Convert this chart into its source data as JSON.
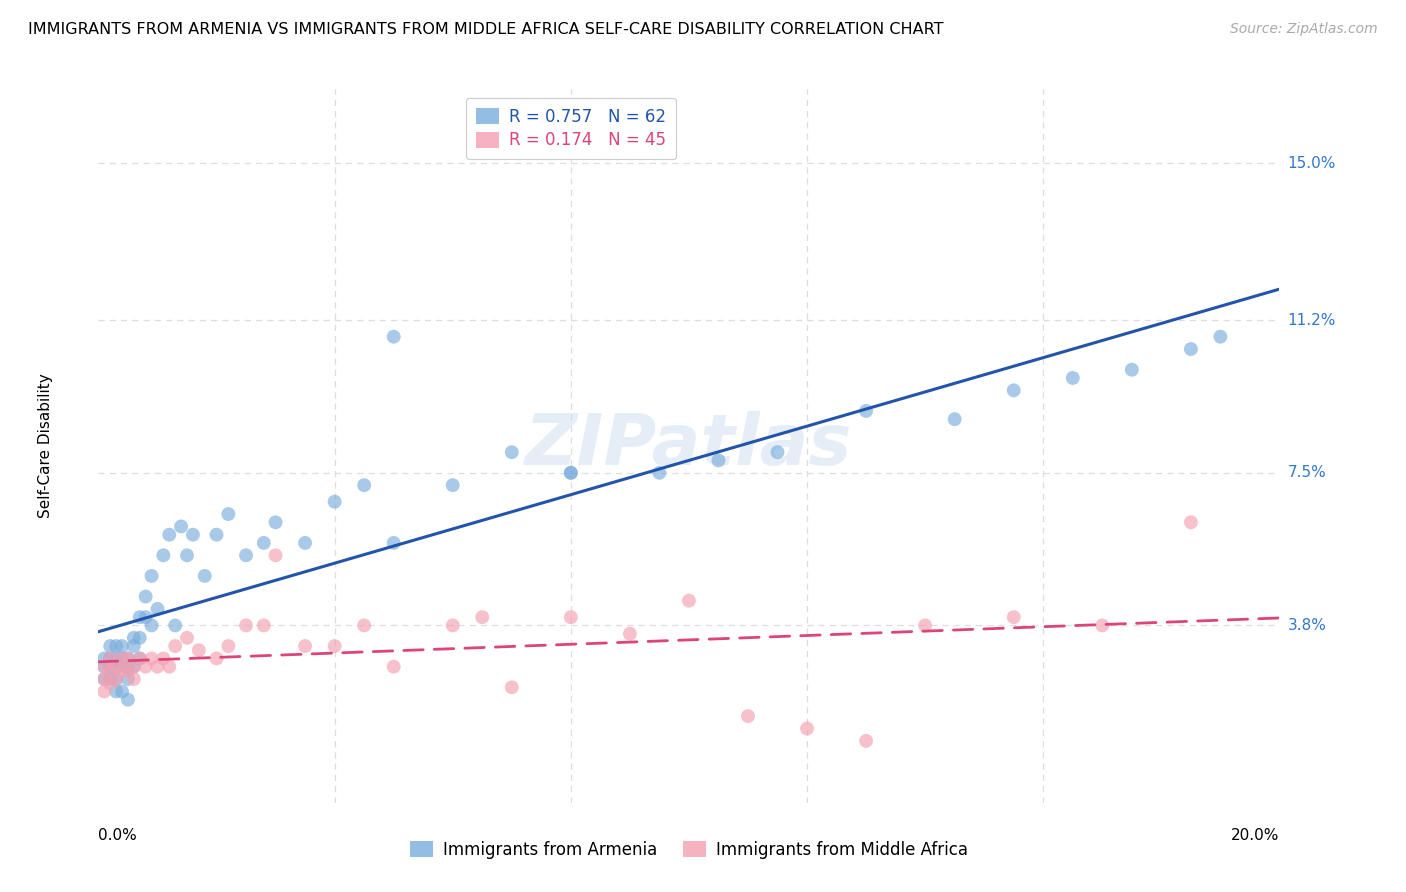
{
  "title": "IMMIGRANTS FROM ARMENIA VS IMMIGRANTS FROM MIDDLE AFRICA SELF-CARE DISABILITY CORRELATION CHART",
  "source": "Source: ZipAtlas.com",
  "ylabel": "Self-Care Disability",
  "ytick_labels": [
    "15.0%",
    "11.2%",
    "7.5%",
    "3.8%"
  ],
  "ytick_values": [
    0.15,
    0.112,
    0.075,
    0.038
  ],
  "xlim": [
    0.0,
    0.2
  ],
  "ylim": [
    -0.005,
    0.168
  ],
  "legend_entries": [
    {
      "label": "R = 0.757   N = 62",
      "color": "#7aaddc"
    },
    {
      "label": "R = 0.174   N = 45",
      "color": "#f4a0b0"
    }
  ],
  "legend_bottom": [
    {
      "label": "Immigrants from Armenia",
      "color": "#7aaddc"
    },
    {
      "label": "Immigrants from Middle Africa",
      "color": "#f4a0b0"
    }
  ],
  "armenia_color": "#7aaddc",
  "middle_africa_color": "#f4a0b0",
  "trendline_armenia_color": "#2255aa",
  "trendline_africa_color": "#dd4477",
  "watermark": "ZIPatlas",
  "armenia_x": [
    0.001,
    0.001,
    0.001,
    0.002,
    0.002,
    0.002,
    0.002,
    0.003,
    0.003,
    0.003,
    0.003,
    0.003,
    0.004,
    0.004,
    0.004,
    0.004,
    0.005,
    0.005,
    0.005,
    0.005,
    0.006,
    0.006,
    0.006,
    0.007,
    0.007,
    0.007,
    0.008,
    0.008,
    0.009,
    0.009,
    0.01,
    0.011,
    0.012,
    0.013,
    0.014,
    0.015,
    0.016,
    0.018,
    0.02,
    0.022,
    0.025,
    0.028,
    0.03,
    0.035,
    0.04,
    0.045,
    0.05,
    0.06,
    0.07,
    0.08,
    0.095,
    0.105,
    0.115,
    0.13,
    0.145,
    0.155,
    0.165,
    0.175,
    0.185,
    0.19,
    0.05,
    0.08
  ],
  "armenia_y": [
    0.03,
    0.028,
    0.025,
    0.033,
    0.03,
    0.028,
    0.025,
    0.033,
    0.03,
    0.028,
    0.025,
    0.022,
    0.033,
    0.03,
    0.028,
    0.022,
    0.03,
    0.028,
    0.025,
    0.02,
    0.035,
    0.033,
    0.028,
    0.04,
    0.035,
    0.03,
    0.045,
    0.04,
    0.05,
    0.038,
    0.042,
    0.055,
    0.06,
    0.038,
    0.062,
    0.055,
    0.06,
    0.05,
    0.06,
    0.065,
    0.055,
    0.058,
    0.063,
    0.058,
    0.068,
    0.072,
    0.058,
    0.072,
    0.08,
    0.075,
    0.075,
    0.078,
    0.08,
    0.09,
    0.088,
    0.095,
    0.098,
    0.1,
    0.105,
    0.108,
    0.108,
    0.075
  ],
  "middle_africa_x": [
    0.001,
    0.001,
    0.001,
    0.002,
    0.002,
    0.002,
    0.003,
    0.003,
    0.004,
    0.004,
    0.005,
    0.005,
    0.006,
    0.006,
    0.007,
    0.008,
    0.009,
    0.01,
    0.011,
    0.012,
    0.013,
    0.015,
    0.017,
    0.02,
    0.022,
    0.025,
    0.028,
    0.03,
    0.035,
    0.04,
    0.045,
    0.05,
    0.06,
    0.065,
    0.07,
    0.08,
    0.09,
    0.1,
    0.11,
    0.12,
    0.13,
    0.14,
    0.155,
    0.17,
    0.185
  ],
  "middle_africa_y": [
    0.028,
    0.025,
    0.022,
    0.03,
    0.027,
    0.024,
    0.028,
    0.025,
    0.03,
    0.027,
    0.03,
    0.027,
    0.028,
    0.025,
    0.03,
    0.028,
    0.03,
    0.028,
    0.03,
    0.028,
    0.033,
    0.035,
    0.032,
    0.03,
    0.033,
    0.038,
    0.038,
    0.055,
    0.033,
    0.033,
    0.038,
    0.028,
    0.038,
    0.04,
    0.023,
    0.04,
    0.036,
    0.044,
    0.016,
    0.013,
    0.01,
    0.038,
    0.04,
    0.038,
    0.063
  ],
  "grid_color": "#dddddd",
  "background_color": "#ffffff"
}
